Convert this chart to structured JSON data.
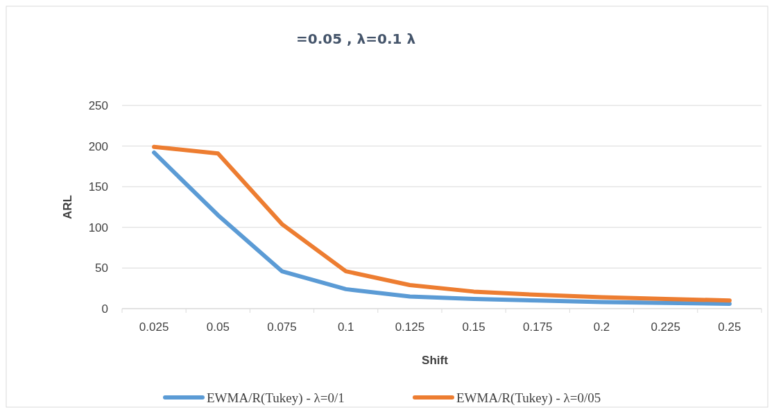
{
  "chart_data": {
    "type": "line",
    "title": "=0.05 , λ=0.1 λ",
    "xlabel": "Shift",
    "ylabel": "ARL",
    "categories": [
      "0.025",
      "0.05",
      "0.075",
      "0.1",
      "0.125",
      "0.15",
      "0.175",
      "0.2",
      "0.225",
      "0.25"
    ],
    "series": [
      {
        "name": "EWMA/R(Tukey) - λ=0/1",
        "color": "#5b9bd5",
        "values": [
          192,
          115,
          46,
          24,
          15,
          12,
          10,
          8,
          7,
          6
        ]
      },
      {
        "name": "EWMA/R(Tukey) - λ=0/05",
        "color": "#ed7d31",
        "values": [
          199,
          191,
          104,
          46,
          29,
          21,
          17,
          14,
          12,
          10
        ]
      }
    ],
    "ylim": [
      0,
      250
    ],
    "yticks": [
      0,
      50,
      100,
      150,
      200,
      250
    ],
    "grid": "y",
    "legend": "bottom",
    "marker": "none",
    "line_style": "solid"
  }
}
